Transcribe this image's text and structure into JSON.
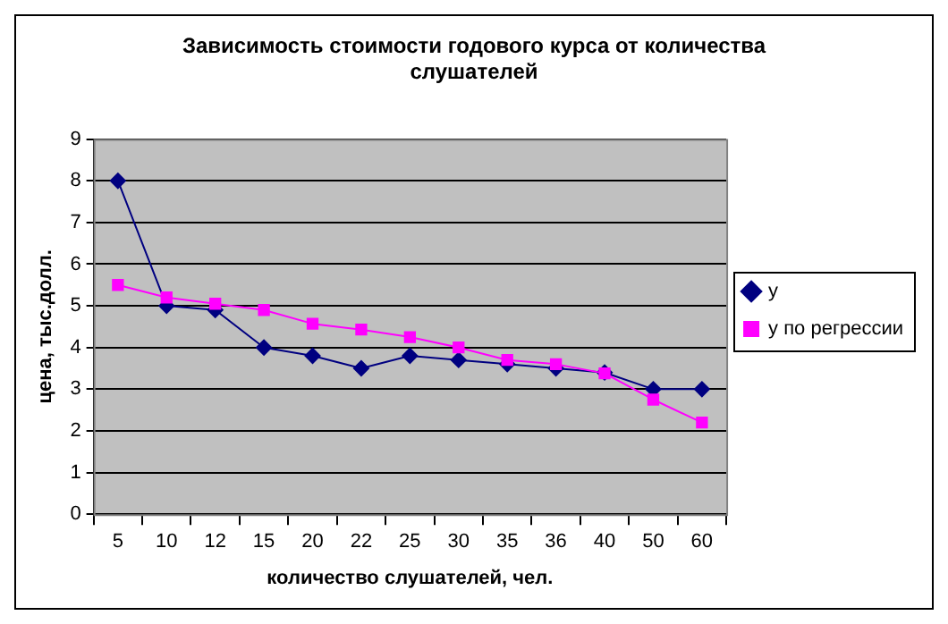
{
  "chart_data": {
    "type": "line",
    "title": "Зависимость стоимости годового курса от количества слушателей",
    "xlabel": "количество слушателей, чел.",
    "ylabel": "цена, тыс.долл.",
    "categories": [
      "5",
      "10",
      "12",
      "15",
      "20",
      "22",
      "25",
      "30",
      "35",
      "36",
      "40",
      "50",
      "60"
    ],
    "series": [
      {
        "name": "y",
        "color": "#000080",
        "marker": "diamond",
        "values": [
          8,
          5,
          4.9,
          4,
          3.8,
          3.5,
          3.8,
          3.7,
          3.6,
          3.5,
          3.4,
          3,
          3
        ]
      },
      {
        "name": "y по регрессии",
        "color": "#ff00ff",
        "marker": "square",
        "values": [
          5.5,
          5.2,
          5.05,
          4.9,
          4.57,
          4.43,
          4.25,
          4,
          3.7,
          3.6,
          3.38,
          2.75,
          2.2
        ]
      }
    ],
    "ylim": [
      0,
      9
    ],
    "yticks": [
      0,
      1,
      2,
      3,
      4,
      5,
      6,
      7,
      8,
      9
    ],
    "grid": "y",
    "legend": "right"
  }
}
